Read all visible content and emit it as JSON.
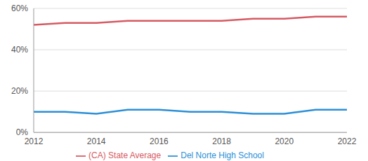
{
  "chart_data": {
    "type": "line",
    "x": [
      2012,
      2013,
      2014,
      2015,
      2016,
      2017,
      2018,
      2019,
      2020,
      2021,
      2022
    ],
    "series": [
      {
        "name": "Del Norte High School",
        "color": "#2b8fd6",
        "values": [
          10,
          10,
          9,
          11,
          11,
          10,
          10,
          9,
          9,
          11,
          11
        ]
      },
      {
        "name": "(CA) State Average",
        "color": "#d65a63",
        "values": [
          52,
          53,
          53,
          54,
          54,
          54,
          54,
          55,
          55,
          56,
          56
        ]
      }
    ],
    "xlim": [
      2012,
      2022
    ],
    "xticks": [
      2012,
      2014,
      2016,
      2018,
      2020,
      2022
    ],
    "ylim": [
      0,
      60
    ],
    "yticks": [
      {
        "value": 0,
        "label": "0%"
      },
      {
        "value": 20,
        "label": "20%"
      },
      {
        "value": 40,
        "label": "40%"
      },
      {
        "value": 60,
        "label": "60%"
      }
    ],
    "grid": true,
    "legend": "bottom"
  }
}
